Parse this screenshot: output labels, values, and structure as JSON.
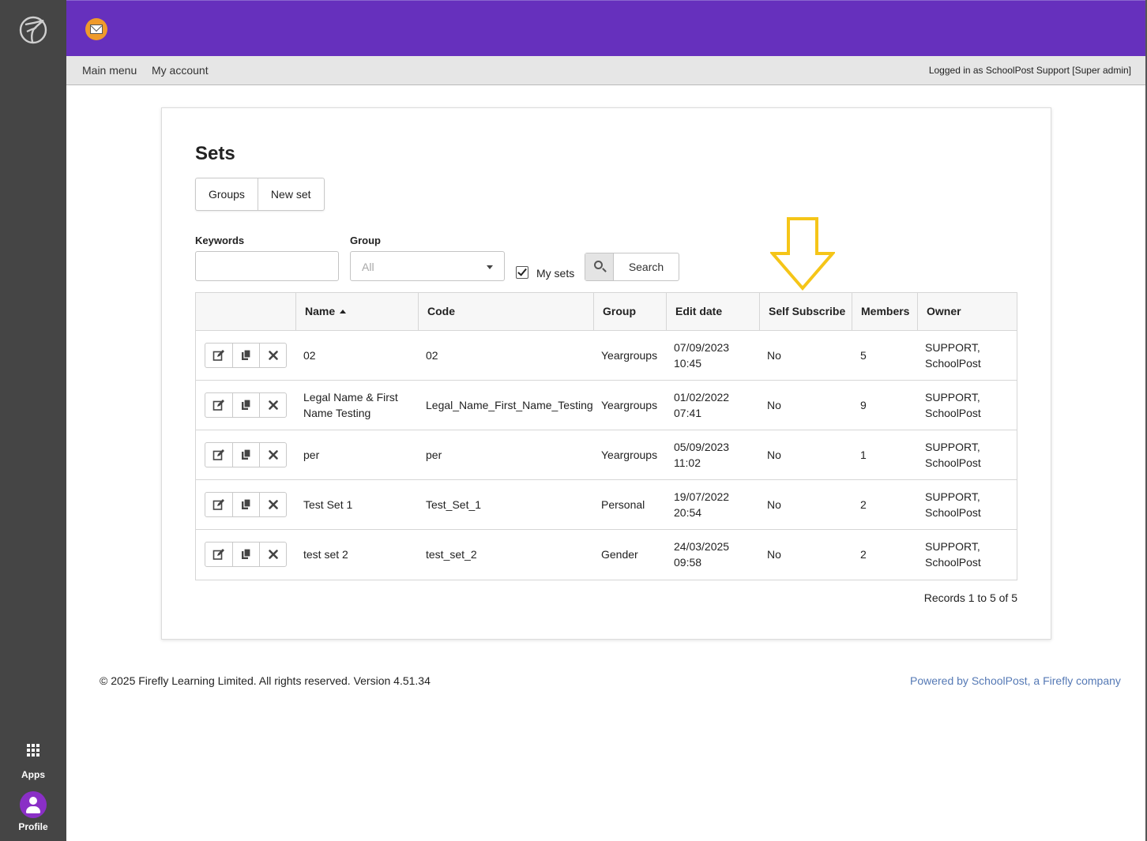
{
  "nav": {
    "main_menu": "Main menu",
    "my_account": "My account",
    "logged_in": "Logged in as SchoolPost Support [Super admin]"
  },
  "rail": {
    "apps_label": "Apps",
    "profile_label": "Profile"
  },
  "page": {
    "title": "Sets",
    "buttons": {
      "groups": "Groups",
      "new_set": "New set"
    }
  },
  "filters": {
    "keywords_label": "Keywords",
    "keywords_value": "",
    "group_label": "Group",
    "group_value": "All",
    "my_sets_label": "My sets",
    "my_sets_checked": true,
    "search_label": "Search"
  },
  "table": {
    "columns": [
      "",
      "Name",
      "Code",
      "Group",
      "Edit date",
      "Self Subscribe",
      "Members",
      "Owner"
    ],
    "sorted_by": "Name",
    "rows": [
      {
        "name": "02",
        "code": "02",
        "group": "Yeargroups",
        "edit_date": "07/09/2023",
        "edit_time": "10:45",
        "self_subscribe": "No",
        "members": "5",
        "owner1": "SUPPORT,",
        "owner2": "SchoolPost"
      },
      {
        "name": "Legal Name & First",
        "name2": "Name Testing",
        "code": "Legal_Name_First_Name_Testing",
        "group": "Yeargroups",
        "edit_date": "01/02/2022",
        "edit_time": "07:41",
        "self_subscribe": "No",
        "members": "9",
        "owner1": "SUPPORT,",
        "owner2": "SchoolPost"
      },
      {
        "name": "per",
        "code": "per",
        "group": "Yeargroups",
        "edit_date": "05/09/2023",
        "edit_time": "11:02",
        "self_subscribe": "No",
        "members": "1",
        "owner1": "SUPPORT,",
        "owner2": "SchoolPost"
      },
      {
        "name": "Test Set 1",
        "code": "Test_Set_1",
        "group": "Personal",
        "edit_date": "19/07/2022",
        "edit_time": "20:54",
        "self_subscribe": "No",
        "members": "2",
        "owner1": "SUPPORT,",
        "owner2": "SchoolPost"
      },
      {
        "name": "test set 2",
        "code": "test_set_2",
        "group": "Gender",
        "edit_date": "24/03/2025",
        "edit_time": "09:58",
        "self_subscribe": "No",
        "members": "2",
        "owner1": "SUPPORT,",
        "owner2": "SchoolPost"
      }
    ],
    "records": "Records 1 to 5 of 5"
  },
  "footer": {
    "copyright": "© 2025 Firefly Learning Limited. All rights reserved. Version 4.51.34",
    "powered": "Powered by SchoolPost, a Firefly company"
  },
  "colors": {
    "topbar": "#6630bd",
    "rail": "#454545",
    "annotation_arrow": "#f5c518",
    "link": "#5579b5",
    "avatar": "#8a2fc6",
    "mail_badge": "#ef9a2b"
  },
  "icons": {
    "edit": "edit-icon",
    "copy": "copy-icon",
    "delete": "delete-icon",
    "search": "search-icon",
    "apps": "apps-grid-icon",
    "profile": "profile-avatar-icon",
    "logo": "firefly-logo-icon",
    "mail": "mail-icon",
    "annotation": "down-arrow-annotation-icon"
  }
}
